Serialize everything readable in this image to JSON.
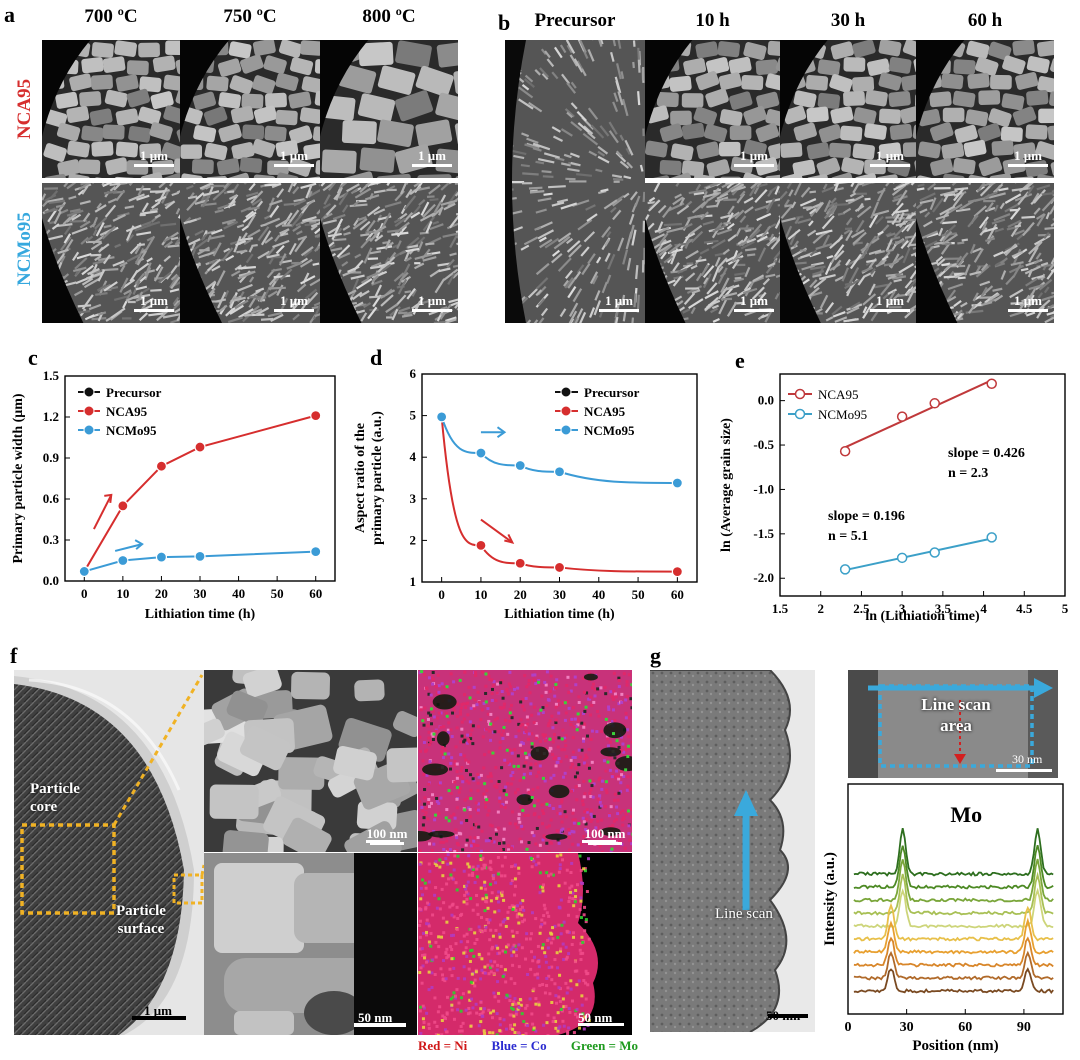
{
  "panels": {
    "a": {
      "label": "a",
      "columns": [
        "700 ºC",
        "750 ºC",
        "800 ºC"
      ],
      "rows": [
        "NCA95",
        "NCMo95"
      ],
      "row_colors": [
        "#d62e2e",
        "#36a8de"
      ],
      "scalebar": "1 μm"
    },
    "b": {
      "label": "b",
      "columns": [
        "Precursor",
        "10 h",
        "30 h",
        "60 h"
      ],
      "scalebar": "1 μm"
    },
    "c": {
      "label": "c"
    },
    "d": {
      "label": "d"
    },
    "e": {
      "label": "e"
    },
    "f": {
      "label": "f",
      "core_label": "Particle\ncore",
      "surface_label": "Particle\nsurface",
      "scalebar_main": "1 μm",
      "scalebar_top": "100 nm",
      "scalebar_bottom": "50 nm",
      "legend": [
        {
          "text": "Red = Ni",
          "color": "#d01818"
        },
        {
          "text": "Blue = Co",
          "color": "#2a2ad0"
        },
        {
          "text": "Green = Mo",
          "color": "#1e9a1e"
        }
      ]
    },
    "g": {
      "label": "g",
      "line_scan": "Line scan",
      "line_scan_area": "Line scan\narea",
      "scalebar_tem": "50 nm",
      "scalebar_inset": "30 nm",
      "element": "Mo"
    }
  },
  "chart_data": [
    {
      "type": "line",
      "panel": "c",
      "xlabel": "Lithiation time (h)",
      "ylabel": "Primary particle width (μm)",
      "xlim": [
        -5,
        65
      ],
      "ylim": [
        0,
        1.5
      ],
      "xticks": [
        0,
        10,
        20,
        30,
        40,
        50,
        60
      ],
      "yticks": [
        0.0,
        0.3,
        0.6,
        0.9,
        1.2,
        1.5
      ],
      "yticklabels": [
        "0.0",
        "0.3",
        "0.6",
        "0.9",
        "1.2",
        "1.5"
      ],
      "legend_position": "top-left",
      "series": [
        {
          "name": "Precursor",
          "color": "#111111",
          "x": [
            0
          ],
          "y": [
            0.07
          ]
        },
        {
          "name": "NCA95",
          "color": "#d62e2e",
          "x": [
            0,
            10,
            20,
            30,
            60
          ],
          "y": [
            0.07,
            0.55,
            0.84,
            0.98,
            1.21
          ]
        },
        {
          "name": "NCMo95",
          "color": "#3b9bd6",
          "x": [
            0,
            10,
            20,
            30,
            60
          ],
          "y": [
            0.07,
            0.15,
            0.175,
            0.18,
            0.215
          ]
        }
      ]
    },
    {
      "type": "line",
      "panel": "d",
      "xlabel": "Lithiation time (h)",
      "ylabel": "Aspect ratio of the primary particle (a.u.)",
      "xlim": [
        -5,
        65
      ],
      "ylim": [
        1,
        6
      ],
      "xticks": [
        0,
        10,
        20,
        30,
        40,
        50,
        60
      ],
      "yticks": [
        1,
        2,
        3,
        4,
        5,
        6
      ],
      "yticklabels": [
        "1",
        "2",
        "3",
        "4",
        "5",
        "6"
      ],
      "legend_position": "top-right",
      "series": [
        {
          "name": "Precursor",
          "color": "#111111",
          "x": [
            0
          ],
          "y": [
            4.97
          ]
        },
        {
          "name": "NCA95",
          "color": "#d62e2e",
          "x": [
            0,
            10,
            20,
            30,
            60
          ],
          "y": [
            4.97,
            1.88,
            1.45,
            1.35,
            1.25
          ]
        },
        {
          "name": "NCMo95",
          "color": "#3b9bd6",
          "x": [
            0,
            10,
            20,
            30,
            60
          ],
          "y": [
            4.97,
            4.1,
            3.8,
            3.65,
            3.38
          ]
        }
      ]
    },
    {
      "type": "scatter",
      "panel": "e",
      "xlabel": "ln (Lithiation time)",
      "ylabel": "ln (Average grain size)",
      "xlim": [
        1.5,
        5.0
      ],
      "ylim": [
        -2.2,
        0.3
      ],
      "xticks": [
        1.5,
        2.0,
        2.5,
        3.0,
        3.5,
        4.0,
        4.5,
        5.0
      ],
      "yticks": [
        0.0,
        -0.5,
        -1.0,
        -1.5,
        -2.0
      ],
      "yticklabels": [
        "0.0",
        "-0.5",
        "-1.0",
        "-1.5",
        "-2.0"
      ],
      "legend_position": "top-left",
      "annotations": [
        "slope = 0.426",
        "n = 2.3",
        "slope = 0.196",
        "n = 5.1"
      ],
      "series": [
        {
          "name": "NCA95",
          "color": "#c0393b",
          "x": [
            2.3,
            3.0,
            3.4,
            4.1
          ],
          "y": [
            -0.57,
            -0.18,
            -0.03,
            0.19
          ]
        },
        {
          "name": "NCMo95",
          "color": "#3ca0c8",
          "x": [
            2.3,
            3.0,
            3.4,
            4.1
          ],
          "y": [
            -1.9,
            -1.77,
            -1.71,
            -1.54
          ]
        }
      ]
    },
    {
      "type": "line",
      "panel": "g",
      "title": "Mo",
      "xlabel": "Position (nm)",
      "ylabel": "Intensity (a.u.)",
      "xlim": [
        0,
        110
      ],
      "xticks": [
        0,
        30,
        60,
        90
      ],
      "peaks_nm": [
        22,
        28,
        92,
        97
      ],
      "n_traces": 10
    }
  ]
}
